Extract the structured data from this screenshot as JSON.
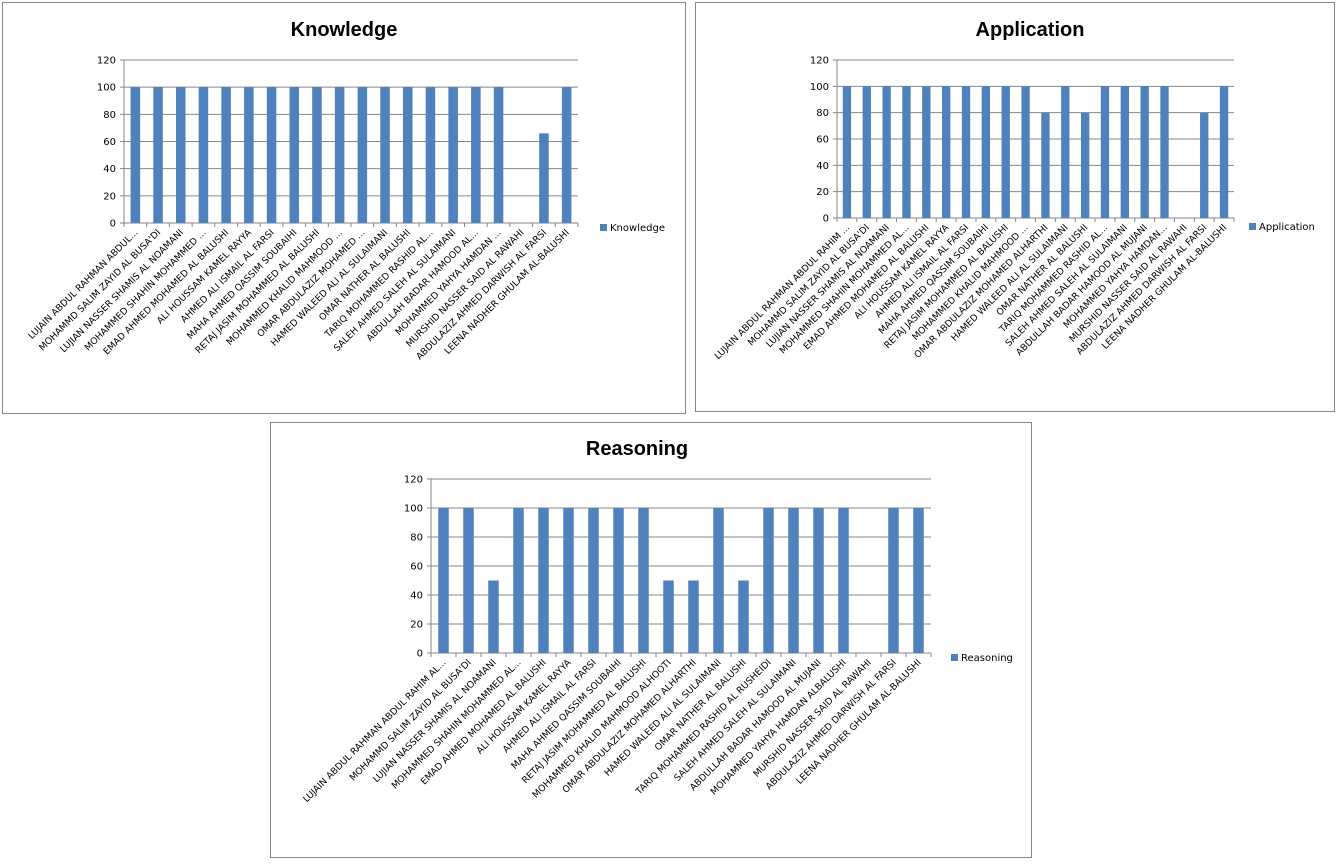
{
  "colors": {
    "bar": "#4F81BD",
    "grid": "#868686",
    "border": "#868686"
  },
  "chart_data": [
    {
      "id": "knowledge",
      "type": "bar",
      "title": "Knowledge",
      "xlabel": "",
      "ylabel": "",
      "ylim": [
        0,
        120
      ],
      "yticks": [
        0,
        20,
        40,
        60,
        80,
        100,
        120
      ],
      "grid": true,
      "legend": "right",
      "categories": [
        "LUJAIN ABDUL RAHMAN ABDUL...",
        "MOHAMMD SALIM ZAYID AL BUSA'DI",
        "LUJIAN NASSER SHAMIS AL NOAMANI",
        "MOHAMMED SHAHIN MOHAMMED ...",
        "EMAD AHMED MOHAMED AL BALUSHI",
        "ALI HOUSSAM KAMEL RAYYA",
        "AHMED ALI ISMAIL AL FARSI",
        "MAHA AHMED QASSIM SOUBAIHI",
        "RETAJ JASIM MOHAMMED AL BALUSHI",
        "MOHAMMED KHALID MAHMOOD ...",
        "OMAR ABDULAZIZ MOHAMED ...",
        "HAMED WALEED ALI AL SULAIMANI",
        "OMAR NATHER AL BALUSHI",
        "TARIQ MOHAMMED RASHID AL...",
        "SALEH AHMED SALEH AL SULAIMANI",
        "ABDULLAH BADAR HAMOOD AL...",
        "MOHAMMED YAHYA HAMDAN ...",
        "MURSHID NASSER SAID AL RAWAHI",
        "ABDULAZIZ AHMED DARWISH AL FARSI",
        "LEENA NADHER GHULAM AL-BALUSHI"
      ],
      "series": [
        {
          "name": "Knowledge",
          "values": [
            100,
            100,
            100,
            100,
            100,
            100,
            100,
            100,
            100,
            100,
            100,
            100,
            100,
            100,
            100,
            100,
            100,
            null,
            66,
            100
          ]
        }
      ]
    },
    {
      "id": "application",
      "type": "bar",
      "title": "Application",
      "xlabel": "",
      "ylabel": "",
      "ylim": [
        0,
        120
      ],
      "yticks": [
        0,
        20,
        40,
        60,
        80,
        100,
        120
      ],
      "grid": true,
      "legend": "right",
      "categories": [
        "LUJAIN ABDUL RAHMAN ABDUL RAHIM ...",
        "MOHAMMD SALIM ZAYID AL BUSA'DI",
        "LUJIAN NASSER SHAMIS AL NOAMANI",
        "MOHAMMED SHAHIN MOHAMMED AL...",
        "EMAD AHMED MOHAMED AL BALUSHI",
        "ALI HOUSSAM KAMEL RAYYA",
        "AHMED ALI ISMAIL AL FARSI",
        "MAHA AHMED QASSIM SOUBAIHI",
        "RETAJ JASIM MOHAMMED AL BALUSHI",
        "MOHAMMED KHALID MAHMOOD ...",
        "OMAR ABDULAZIZ MOHAMED ALHARTHI",
        "HAMED WALEED ALI AL SULAIMANI",
        "OMAR NATHER AL BALUSHI",
        "TARIQ MOHAMMED RASHID AL...",
        "SALEH AHMED SALEH AL SULAIMANI",
        "ABDULLAH BADAR HAMOOD AL MUJANI",
        "MOHAMMED YAHYA HAMDAN...",
        "MURSHID NASSER SAID AL RAWAHI",
        "ABDULAZIZ AHMED DARWISH AL FARSI",
        "LEENA NADHER GHULAM AL-BALUSHI"
      ],
      "series": [
        {
          "name": "Application",
          "values": [
            100,
            100,
            100,
            100,
            100,
            100,
            100,
            100,
            100,
            100,
            80,
            100,
            80,
            100,
            100,
            100,
            100,
            null,
            80,
            100
          ]
        }
      ]
    },
    {
      "id": "reasoning",
      "type": "bar",
      "title": "Reasoning",
      "xlabel": "",
      "ylabel": "",
      "ylim": [
        0,
        120
      ],
      "yticks": [
        0,
        20,
        40,
        60,
        80,
        100,
        120
      ],
      "grid": true,
      "legend": "right",
      "categories": [
        "LUJAIN ABDUL RAHMAN ABDUL RAHIM AL...",
        "MOHAMMD SALIM ZAYID AL BUSA'DI",
        "LUJIAN NASSER SHAMIS AL NOAMANI",
        "MOHAMMED SHAHIN MOHAMMED AL...",
        "EMAD AHMED MOHAMED AL BALUSHI",
        "ALI HOUSSAM KAMEL RAYYA",
        "AHMED ALI ISMAIL AL FARSI",
        "MAHA AHMED QASSIM SOUBAIHI",
        "RETAJ JASIM MOHAMMED AL BALUSHI",
        "MOHAMMED KHALID MAHMOOD ALHOOTI",
        "OMAR ABDULAZIZ MOHAMED ALHARTHI",
        "HAMED WALEED ALI AL SULAIMANI",
        "OMAR NATHER AL BALUSHI",
        "TARIQ MOHAMMED RASHID AL RUSHEIDI",
        "SALEH AHMED SALEH AL SULAIMANI",
        "ABDULLAH BADAR HAMOOD AL MUJANI",
        "MOHAMMED YAHYA HAMDAN ALBALUSHI",
        "MURSHID NASSER SAID AL RAWAHI",
        "ABDULAZIZ AHMED DARWISH AL FARSI",
        "LEENA NADHER GHULAM AL-BALUSHI"
      ],
      "series": [
        {
          "name": "Reasoning",
          "values": [
            100,
            100,
            50,
            100,
            100,
            100,
            100,
            100,
            100,
            50,
            50,
            100,
            50,
            100,
            100,
            100,
            100,
            null,
            100,
            100
          ]
        }
      ]
    }
  ]
}
